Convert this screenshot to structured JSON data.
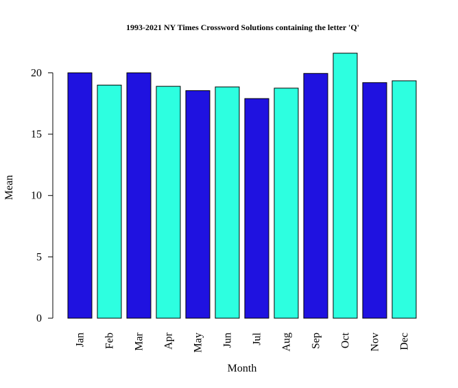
{
  "chart_data": {
    "type": "bar",
    "title": "1993-2021 NY Times Crossword Solutions containing the letter 'Q'",
    "xlabel": "Month",
    "ylabel": "Mean",
    "categories": [
      "Jan",
      "Feb",
      "Mar",
      "Apr",
      "May",
      "Jun",
      "Jul",
      "Aug",
      "Sep",
      "Oct",
      "Nov",
      "Dec"
    ],
    "values": [
      20.0,
      19.0,
      20.0,
      18.9,
      18.55,
      18.85,
      17.9,
      18.75,
      19.95,
      21.6,
      19.2,
      19.35
    ],
    "bar_colors": [
      "#1f12e0",
      "#2dffe0",
      "#1f12e0",
      "#2dffe0",
      "#1f12e0",
      "#2dffe0",
      "#1f12e0",
      "#2dffe0",
      "#1f12e0",
      "#2dffe0",
      "#1f12e0",
      "#2dffe0"
    ],
    "yticks": [
      0,
      5,
      10,
      15,
      20
    ],
    "ylim": [
      0,
      22.68
    ],
    "grid": false,
    "legend": "none"
  }
}
